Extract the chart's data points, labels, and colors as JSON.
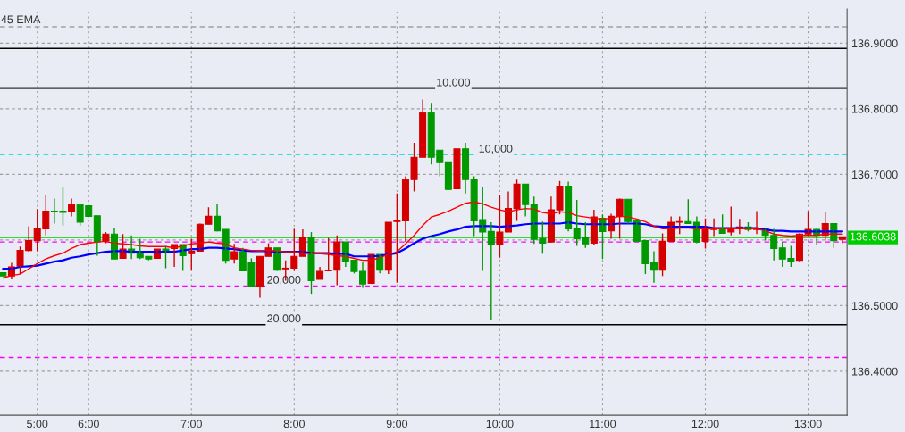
{
  "chart_data": {
    "type": "candlestick",
    "title": "45 EMA",
    "categories": [
      null,
      null,
      null,
      null,
      "5:00",
      null,
      null,
      null,
      null,
      null,
      "6:00",
      null,
      null,
      null,
      null,
      null,
      null,
      null,
      null,
      null,
      null,
      null,
      "7:00",
      null,
      null,
      null,
      null,
      null,
      null,
      null,
      null,
      null,
      null,
      null,
      "8:00",
      null,
      null,
      null,
      null,
      null,
      null,
      null,
      null,
      null,
      null,
      null,
      "9:00",
      null,
      null,
      null,
      null,
      null,
      null,
      null,
      null,
      null,
      null,
      null,
      "10:00",
      null,
      null,
      null,
      null,
      null,
      null,
      null,
      null,
      null,
      null,
      null,
      "11:00",
      null,
      null,
      null,
      null,
      null,
      null,
      null,
      null,
      null,
      null,
      null,
      "12:00",
      null,
      null,
      null,
      null,
      null,
      null,
      null,
      null,
      null,
      null,
      null,
      "13:00",
      null,
      null,
      null,
      null
    ],
    "ohlc": [
      [
        136.55,
        136.55,
        136.545,
        136.545
      ],
      [
        136.545,
        136.565,
        136.54,
        136.559
      ],
      [
        136.56,
        136.59,
        136.548,
        136.584
      ],
      [
        136.584,
        136.621,
        136.582,
        136.599
      ],
      [
        136.599,
        136.647,
        136.583,
        136.617
      ],
      [
        136.617,
        136.669,
        136.607,
        136.644
      ],
      [
        136.644,
        136.663,
        136.625,
        136.643
      ],
      [
        136.644,
        136.68,
        136.622,
        136.642
      ],
      [
        136.643,
        136.663,
        136.636,
        136.654
      ],
      [
        136.654,
        136.654,
        136.622,
        136.627
      ],
      [
        136.652,
        136.652,
        136.635,
        136.636
      ],
      [
        136.637,
        136.637,
        136.576,
        136.598
      ],
      [
        136.599,
        136.612,
        136.595,
        136.609
      ],
      [
        136.609,
        136.618,
        136.571,
        136.571
      ],
      [
        136.572,
        136.609,
        136.572,
        136.586
      ],
      [
        136.586,
        136.607,
        136.571,
        136.58
      ],
      [
        136.58,
        136.602,
        136.571,
        136.573
      ],
      [
        136.575,
        136.575,
        136.569,
        136.571
      ],
      [
        136.572,
        136.586,
        136.572,
        136.586
      ],
      [
        136.586,
        136.591,
        136.557,
        136.584
      ],
      [
        136.587,
        136.593,
        136.559,
        136.593
      ],
      [
        136.593,
        136.593,
        136.553,
        136.576
      ],
      [
        136.579,
        136.602,
        136.554,
        136.583
      ],
      [
        136.583,
        136.625,
        136.583,
        136.624
      ],
      [
        136.624,
        136.65,
        136.624,
        136.636
      ],
      [
        136.636,
        136.655,
        136.613,
        136.614
      ],
      [
        136.616,
        136.616,
        136.564,
        136.569
      ],
      [
        136.571,
        136.594,
        136.564,
        136.582
      ],
      [
        136.582,
        136.588,
        136.553,
        136.553
      ],
      [
        136.565,
        136.572,
        136.529,
        136.529
      ],
      [
        136.53,
        136.575,
        136.512,
        136.575
      ],
      [
        136.575,
        136.595,
        136.575,
        136.588
      ],
      [
        136.588,
        136.588,
        136.553,
        136.554
      ],
      [
        136.556,
        136.569,
        136.538,
        136.557
      ],
      [
        136.557,
        136.617,
        136.553,
        136.575
      ],
      [
        136.575,
        136.616,
        136.575,
        136.603
      ],
      [
        136.603,
        136.612,
        136.518,
        136.538
      ],
      [
        136.54,
        136.559,
        136.54,
        136.552
      ],
      [
        136.553,
        136.603,
        136.553,
        136.554
      ],
      [
        136.554,
        136.607,
        136.531,
        136.597
      ],
      [
        136.597,
        136.597,
        136.559,
        136.568
      ],
      [
        136.569,
        136.569,
        136.549,
        136.552
      ],
      [
        136.552,
        136.567,
        136.527,
        136.533
      ],
      [
        136.534,
        136.578,
        136.533,
        136.578
      ],
      [
        136.578,
        136.578,
        136.549,
        136.554
      ],
      [
        136.554,
        136.627,
        136.548,
        136.627
      ],
      [
        136.628,
        136.671,
        136.535,
        136.629
      ],
      [
        136.629,
        136.697,
        136.597,
        136.692
      ],
      [
        136.692,
        136.748,
        136.674,
        136.726
      ],
      [
        136.726,
        136.814,
        136.726,
        136.794
      ],
      [
        136.794,
        136.809,
        136.715,
        136.726
      ],
      [
        136.737,
        136.737,
        136.697,
        136.718
      ],
      [
        136.719,
        136.719,
        136.676,
        136.677
      ],
      [
        136.678,
        136.739,
        136.678,
        136.739
      ],
      [
        136.739,
        136.748,
        136.671,
        136.692
      ],
      [
        136.693,
        136.697,
        136.606,
        136.629
      ],
      [
        136.631,
        136.681,
        136.553,
        136.612
      ],
      [
        136.613,
        136.627,
        136.478,
        136.593
      ],
      [
        136.593,
        136.669,
        136.573,
        136.612
      ],
      [
        136.612,
        136.674,
        136.612,
        136.648
      ],
      [
        136.648,
        136.692,
        136.629,
        136.685
      ],
      [
        136.685,
        136.685,
        136.636,
        136.654
      ],
      [
        136.655,
        136.666,
        136.594,
        136.601
      ],
      [
        136.602,
        136.628,
        136.579,
        136.595
      ],
      [
        136.597,
        136.666,
        136.597,
        136.646
      ],
      [
        136.646,
        136.69,
        136.639,
        136.682
      ],
      [
        136.682,
        136.689,
        136.613,
        136.617
      ],
      [
        136.618,
        136.661,
        136.591,
        136.602
      ],
      [
        136.603,
        136.627,
        136.588,
        136.594
      ],
      [
        136.595,
        136.646,
        136.593,
        136.635
      ],
      [
        136.633,
        136.639,
        136.571,
        136.613
      ],
      [
        136.614,
        136.64,
        136.602,
        136.636
      ],
      [
        136.636,
        136.663,
        136.602,
        136.662
      ],
      [
        136.662,
        136.662,
        136.625,
        136.628
      ],
      [
        136.629,
        136.629,
        136.598,
        136.598
      ],
      [
        136.599,
        136.599,
        136.548,
        136.564
      ],
      [
        136.565,
        136.583,
        136.535,
        136.554
      ],
      [
        136.554,
        136.61,
        136.545,
        136.598
      ],
      [
        136.598,
        136.636,
        136.598,
        136.627
      ],
      [
        136.627,
        136.636,
        136.609,
        136.628
      ],
      [
        136.628,
        136.662,
        136.625,
        136.625
      ],
      [
        136.627,
        136.636,
        136.595,
        136.597
      ],
      [
        136.598,
        136.633,
        136.587,
        136.617
      ],
      [
        136.616,
        136.633,
        136.606,
        136.617
      ],
      [
        136.617,
        136.639,
        136.61,
        136.61
      ],
      [
        136.612,
        136.651,
        136.607,
        136.617
      ],
      [
        136.617,
        136.632,
        136.609,
        136.62
      ],
      [
        136.62,
        136.627,
        136.613,
        136.616
      ],
      [
        136.616,
        136.644,
        136.609,
        136.617
      ],
      [
        136.617,
        136.617,
        136.599,
        136.607
      ],
      [
        136.607,
        136.617,
        136.569,
        136.587
      ],
      [
        136.588,
        136.597,
        136.559,
        136.571
      ],
      [
        136.572,
        136.591,
        136.559,
        136.568
      ],
      [
        136.569,
        136.61,
        136.567,
        136.609
      ],
      [
        136.609,
        136.644,
        136.607,
        136.616
      ],
      [
        136.616,
        136.617,
        136.593,
        136.607
      ],
      [
        136.607,
        136.643,
        136.599,
        136.625
      ],
      [
        136.625,
        136.625,
        136.588,
        136.599
      ],
      [
        136.601,
        136.605,
        136.595,
        136.605
      ]
    ],
    "colors": [
      "#009a00",
      "#d40000",
      "#d40000",
      "#d40000",
      "#d40000",
      "#d40000",
      "#009a00",
      "#009a00",
      "#d40000",
      "#009a00",
      "#009a00",
      "#009a00",
      "#d40000",
      "#009a00",
      "#d40000",
      "#009a00",
      "#009a00",
      "#009a00",
      "#d40000",
      "#009a00",
      "#d40000",
      "#009a00",
      "#d40000",
      "#d40000",
      "#d40000",
      "#009a00",
      "#009a00",
      "#d40000",
      "#009a00",
      "#009a00",
      "#d40000",
      "#d40000",
      "#009a00",
      "#d40000",
      "#d40000",
      "#d40000",
      "#009a00",
      "#d40000",
      "#d40000",
      "#d40000",
      "#009a00",
      "#009a00",
      "#009a00",
      "#d40000",
      "#009a00",
      "#d40000",
      "#d40000",
      "#d40000",
      "#d40000",
      "#d40000",
      "#009a00",
      "#009a00",
      "#009a00",
      "#d40000",
      "#009a00",
      "#009a00",
      "#009a00",
      "#009a00",
      "#d40000",
      "#d40000",
      "#d40000",
      "#009a00",
      "#009a00",
      "#009a00",
      "#d40000",
      "#d40000",
      "#009a00",
      "#009a00",
      "#009a00",
      "#d40000",
      "#009a00",
      "#d40000",
      "#d40000",
      "#009a00",
      "#009a00",
      "#009a00",
      "#009a00",
      "#d40000",
      "#d40000",
      "#d40000",
      "#009a00",
      "#009a00",
      "#d40000",
      "#d40000",
      "#009a00",
      "#d40000",
      "#d40000",
      "#009a00",
      "#d40000",
      "#009a00",
      "#009a00",
      "#009a00",
      "#009a00",
      "#d40000",
      "#d40000",
      "#009a00",
      "#d40000",
      "#009a00",
      "#d40000"
    ],
    "series": [
      {
        "type": "line",
        "color": "#ff0000",
        "values": [
          136.542,
          136.546,
          136.548,
          136.556,
          136.564,
          136.571,
          136.576,
          136.58,
          136.587,
          136.593,
          136.595,
          136.597,
          136.598,
          136.595,
          136.594,
          136.593,
          136.591,
          136.59,
          136.59,
          136.59,
          136.588,
          136.591,
          136.594,
          136.595,
          136.597,
          136.595,
          136.594,
          136.588,
          136.586,
          136.584,
          136.583,
          136.584,
          136.583,
          136.582,
          136.582,
          136.58,
          136.579,
          136.579,
          136.578,
          136.576,
          136.575,
          136.572,
          136.569,
          136.569,
          136.573,
          136.578,
          136.582,
          136.594,
          136.607,
          136.622,
          136.635,
          136.639,
          136.644,
          136.65,
          136.656,
          136.658,
          136.655,
          136.65,
          136.646,
          136.643,
          136.646,
          136.648,
          136.647,
          136.642,
          136.64,
          136.643,
          136.642,
          136.637,
          136.635,
          136.633,
          136.632,
          136.633,
          136.636,
          136.635,
          136.632,
          136.628,
          136.621,
          136.617,
          136.617,
          136.618,
          136.618,
          136.617,
          136.617,
          136.617,
          136.617,
          136.617,
          136.617,
          136.617,
          136.617,
          136.614,
          136.609,
          136.607,
          136.606,
          136.607,
          136.607,
          136.607,
          136.609,
          136.609,
          136.609
        ]
      },
      {
        "type": "line",
        "color": "#0000ff",
        "values": [
          136.556,
          136.556,
          136.559,
          136.56,
          136.561,
          136.564,
          136.567,
          136.569,
          136.573,
          136.575,
          136.578,
          136.58,
          136.582,
          136.583,
          136.583,
          136.582,
          136.582,
          136.582,
          136.582,
          136.582,
          136.582,
          136.584,
          136.586,
          136.586,
          136.588,
          136.588,
          136.587,
          136.586,
          136.584,
          136.583,
          136.583,
          136.583,
          136.582,
          136.582,
          136.582,
          136.582,
          136.58,
          136.58,
          136.58,
          136.579,
          136.579,
          136.575,
          136.575,
          136.575,
          136.576,
          136.578,
          136.58,
          136.587,
          136.595,
          136.602,
          136.606,
          136.609,
          136.613,
          136.616,
          136.62,
          136.621,
          136.621,
          136.621,
          136.62,
          136.621,
          136.622,
          136.624,
          136.625,
          136.625,
          136.625,
          136.625,
          136.627,
          136.625,
          136.624,
          136.624,
          136.624,
          136.624,
          136.625,
          136.625,
          136.625,
          136.624,
          136.621,
          136.62,
          136.62,
          136.62,
          136.62,
          136.62,
          136.62,
          136.618,
          136.618,
          136.618,
          136.618,
          136.618,
          136.618,
          136.616,
          136.614,
          136.614,
          136.613,
          136.613,
          136.613,
          136.613,
          136.613,
          136.613,
          136.613
        ]
      }
    ],
    "ylim": [
      136.333,
      136.952
    ],
    "yticks": [
      {
        "value": 136.4,
        "label": "136.4000"
      },
      {
        "value": 136.5,
        "label": "136.5000"
      },
      {
        "value": 136.6,
        "label": null
      },
      {
        "value": 136.7,
        "label": "136.7000"
      },
      {
        "value": 136.8,
        "label": "136.8000"
      },
      {
        "value": 136.9,
        "label": "136.9000"
      }
    ],
    "grid": true,
    "ref_lines": [
      {
        "axis": "y",
        "value": 136.925,
        "color": "#a0a0a0",
        "line_style": "dashed"
      },
      {
        "axis": "y",
        "value": 136.892,
        "color": "#000000"
      },
      {
        "axis": "y",
        "value": 136.831,
        "color": "#333333"
      },
      {
        "axis": "y",
        "value": 136.73,
        "color": "#33dddd",
        "line_style": "dashed"
      },
      {
        "axis": "y",
        "value": 136.6038,
        "color": "#00cc00",
        "label": "136.6038"
      },
      {
        "axis": "y",
        "value": 136.597,
        "color": "#ff00ff",
        "line_style": "dashed"
      },
      {
        "axis": "y",
        "value": 136.53,
        "color": "#ff00ff",
        "line_style": "dashed"
      },
      {
        "axis": "y",
        "value": 136.471,
        "color": "#000000"
      },
      {
        "axis": "y",
        "value": 136.421,
        "color": "#ff00ff",
        "line_style": "dashed"
      }
    ],
    "annotations": [
      {
        "text": "10,000",
        "y": 136.831
      },
      {
        "text": "10,000",
        "y": 136.73
      },
      {
        "text": "20,000",
        "y": 136.53
      },
      {
        "text": "20,000",
        "y": 136.471
      }
    ]
  }
}
